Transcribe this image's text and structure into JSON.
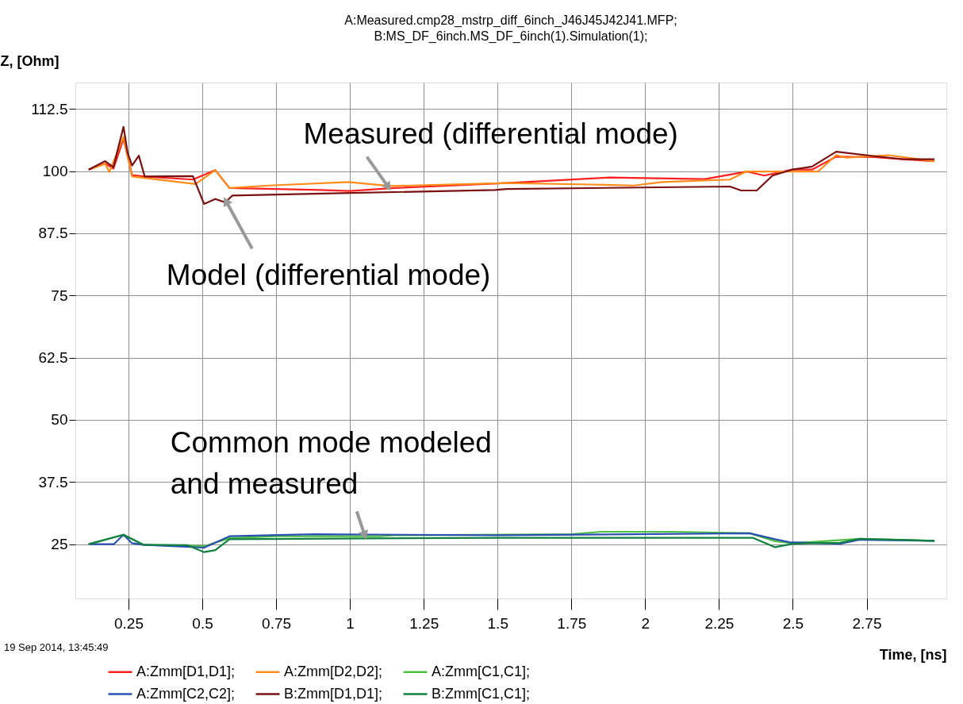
{
  "chart_data": {
    "type": "line",
    "title": "A:Measured.cmp28_mstrp_diff_6inch_J46J45J42J41.MFP;\nB:MS_DF_6inch.MS_DF_6inch(1).Simulation(1);",
    "xlabel": "Time, [ns]",
    "ylabel": "Z, [Ohm]",
    "xlim": [
      0.07,
      3.02
    ],
    "ylim": [
      14.1,
      117.8
    ],
    "xticks": [
      0.25,
      0.5,
      0.75,
      1,
      1.25,
      1.5,
      1.75,
      2,
      2.25,
      2.5,
      2.75
    ],
    "yticks": [
      25,
      37.5,
      50,
      62.5,
      75,
      87.5,
      100,
      112.5
    ],
    "grid": true,
    "legend": "bottom",
    "marker": "none",
    "line_style": "solid",
    "annotations": [
      {
        "text": "Measured (differential mode)",
        "x": 1.13,
        "y": 96.8
      },
      {
        "text": "Model (differential mode)",
        "x": 0.58,
        "y": 94.0
      },
      {
        "text": "Common mode modeled\nand measured",
        "x": 1.05,
        "y": 26.8
      },
      "19 Sep 2014, 13:45:49"
    ],
    "series": [
      {
        "name": "A:Zmm[D1,D1];",
        "color": "#ff2020",
        "x": [
          0.115,
          0.171,
          0.199,
          0.233,
          0.262,
          0.305,
          0.468,
          0.544,
          0.592,
          0.9,
          1.0,
          1.15,
          1.531,
          1.876,
          2.202,
          2.346,
          2.403,
          2.498,
          2.565,
          2.647,
          2.776,
          2.872,
          2.98
        ],
        "values": [
          100.3,
          101.5,
          100.5,
          106.5,
          99.2,
          98.9,
          98.3,
          100.2,
          96.6,
          96.2,
          96.0,
          96.6,
          97.6,
          98.7,
          98.4,
          99.9,
          99.1,
          100.3,
          100.3,
          102.9,
          102.8,
          102.4,
          102.0
        ]
      },
      {
        "name": "A:Zmm[D2,D2];",
        "color": "#ff8c1a",
        "x": [
          0.115,
          0.171,
          0.185,
          0.233,
          0.262,
          0.477,
          0.544,
          0.592,
          0.726,
          0.994,
          1.138,
          1.531,
          1.818,
          1.962,
          2.057,
          2.287,
          2.341,
          2.585,
          2.647,
          2.68,
          2.824,
          2.98
        ],
        "values": [
          100.3,
          101.5,
          99.8,
          106.9,
          98.9,
          97.4,
          100.2,
          96.6,
          97.1,
          97.8,
          97.0,
          97.6,
          97.3,
          97.1,
          97.8,
          98.3,
          99.9,
          99.9,
          103.2,
          102.7,
          103.2,
          102.0
        ]
      },
      {
        "name": "A:Zmm[C1,C1];",
        "color": "#4cc040",
        "x": [
          0.115,
          0.233,
          0.3,
          0.506,
          0.592,
          0.75,
          1.1,
          1.15,
          1.75,
          1.85,
          2.1,
          2.354,
          2.44,
          2.5,
          2.727,
          2.98
        ],
        "values": [
          25.0,
          26.9,
          24.9,
          24.6,
          26.2,
          26.6,
          26.6,
          26.8,
          27.0,
          27.5,
          27.5,
          27.2,
          25.6,
          25.2,
          26.1,
          25.7
        ]
      },
      {
        "name": "A:Zmm[C2,C2];",
        "color": "#2a50b0",
        "x": [
          0.115,
          0.2,
          0.233,
          0.262,
          0.3,
          0.506,
          0.592,
          0.726,
          0.879,
          1.5,
          2.354,
          2.44,
          2.488,
          2.66,
          2.727,
          2.98
        ],
        "values": [
          25.0,
          25.0,
          26.9,
          25.2,
          24.9,
          24.3,
          26.6,
          26.8,
          27.0,
          26.8,
          27.2,
          26.0,
          25.4,
          25.1,
          25.9,
          25.7
        ]
      },
      {
        "name": "B:Zmm[D1,D1];",
        "color": "#7a1010",
        "x": [
          0.115,
          0.171,
          0.199,
          0.233,
          0.247,
          0.262,
          0.285,
          0.305,
          0.468,
          0.506,
          0.544,
          0.578,
          0.602,
          1.0,
          1.492,
          1.531,
          2.287,
          2.325,
          2.378,
          2.431,
          2.498,
          2.565,
          2.647,
          2.776,
          2.872,
          2.98
        ],
        "values": [
          100.3,
          102.0,
          100.8,
          108.9,
          103.7,
          101.1,
          103.1,
          98.9,
          99.0,
          93.4,
          94.4,
          93.7,
          95.1,
          95.6,
          96.2,
          96.4,
          96.9,
          96.1,
          96.1,
          99.1,
          100.3,
          100.9,
          103.9,
          103.0,
          102.4,
          102.4
        ]
      },
      {
        "name": "B:Zmm[C1,C1];",
        "color": "#108040",
        "x": [
          0.115,
          0.233,
          0.3,
          0.45,
          0.506,
          0.544,
          0.592,
          1.5,
          2.364,
          2.44,
          2.5,
          2.66,
          2.727,
          2.98
        ],
        "values": [
          25.0,
          26.9,
          24.9,
          24.8,
          23.4,
          23.8,
          26.0,
          26.3,
          26.3,
          24.4,
          25.1,
          25.3,
          26.1,
          25.7
        ]
      }
    ]
  }
}
